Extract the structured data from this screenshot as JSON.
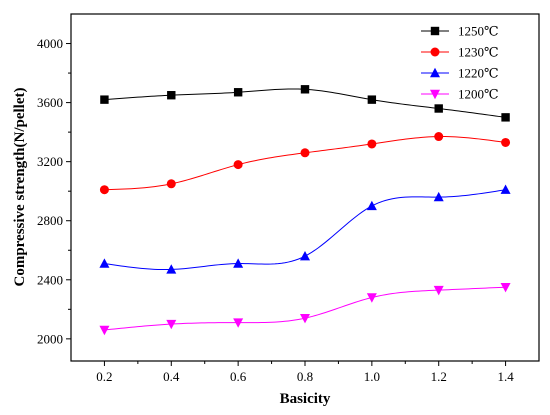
{
  "chart_data": {
    "type": "line",
    "xlabel": "Basicity",
    "ylabel": "Compressive strength(N/pellet)",
    "xlim": [
      0.1,
      1.5
    ],
    "ylim": [
      1850,
      4200
    ],
    "x": [
      0.2,
      0.4,
      0.6,
      0.8,
      1.0,
      1.2,
      1.4
    ],
    "x_ticks": [
      0.2,
      0.4,
      0.6,
      0.8,
      1.0,
      1.2,
      1.4
    ],
    "x_tick_labels": [
      "0.2",
      "0.4",
      "0.6",
      "0.8",
      "1.0",
      "1.2",
      "1.4"
    ],
    "y_ticks": [
      2000,
      2400,
      2800,
      3200,
      3600,
      4000
    ],
    "y_tick_labels": [
      "2000",
      "2400",
      "2800",
      "3200",
      "3600",
      "4000"
    ],
    "grid": false,
    "legend_position": "top-right",
    "series": [
      {
        "name": "1250℃",
        "marker": "square",
        "color": "#000000",
        "values": [
          3620,
          3650,
          3670,
          3690,
          3620,
          3560,
          3500
        ]
      },
      {
        "name": "1230℃",
        "marker": "circle",
        "color": "#ff0000",
        "values": [
          3010,
          3050,
          3180,
          3260,
          3320,
          3370,
          3330
        ]
      },
      {
        "name": "1220℃",
        "marker": "triangle-up",
        "color": "#0000ff",
        "values": [
          2510,
          2470,
          2510,
          2560,
          2900,
          2960,
          3010
        ]
      },
      {
        "name": "1200℃",
        "marker": "triangle-down",
        "color": "#ff00ff",
        "values": [
          2060,
          2100,
          2110,
          2140,
          2280,
          2330,
          2350
        ]
      }
    ]
  }
}
